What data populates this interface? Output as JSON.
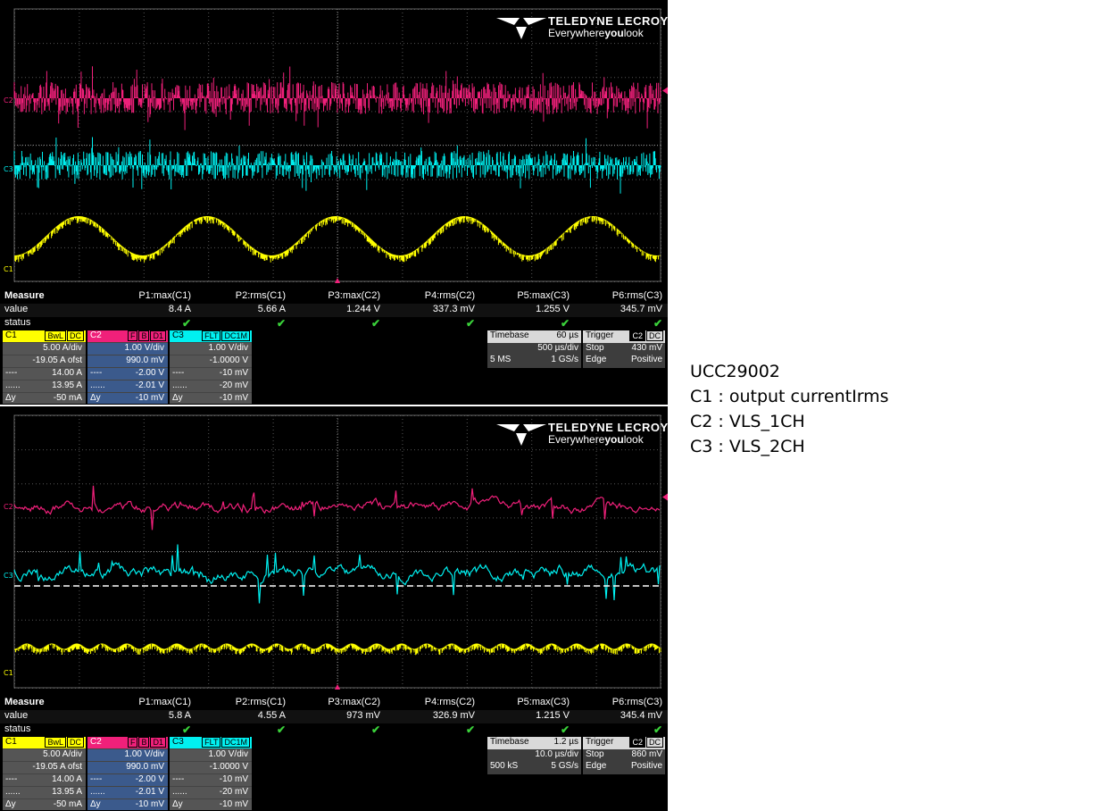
{
  "brand": {
    "name": "TELEDYNE LECROY",
    "tag_pre": "Everywhere",
    "tag_bold": "you",
    "tag_post": "look"
  },
  "colors": {
    "c1": "#ffff00",
    "c2": "#f0207a",
    "c3": "#00f0f0"
  },
  "side_notes": [
    "UCC29002",
    "C1 : output currentIrms",
    "C2 : VLS_1CH",
    "C3 : VLS_2CH"
  ],
  "scopes": [
    {
      "labels": {
        "c1": "C1",
        "c2": "C2",
        "c3": "C3"
      },
      "measure": {
        "title": "Measure",
        "value_label": "value",
        "status_label": "status",
        "params": [
          "P1:max(C1)",
          "P2:rms(C1)",
          "P3:max(C2)",
          "P4:rms(C2)",
          "P5:max(C3)",
          "P6:rms(C3)"
        ],
        "values": [
          "8.4 A",
          "5.66 A",
          "1.244 V",
          "337.3 mV",
          "1.255 V",
          "345.7 mV"
        ]
      },
      "c1": {
        "name": "C1",
        "tags": [
          "BwL",
          "DC"
        ],
        "rows": [
          [
            "",
            "5.00 A/div"
          ],
          [
            "",
            "-19.05 A ofst"
          ],
          [
            "----",
            "14.00 A"
          ],
          [
            "......",
            "13.95 A"
          ],
          [
            "Δy",
            "-50 mA"
          ]
        ]
      },
      "c2": {
        "name": "C2",
        "tags": [
          "F",
          "B",
          "D1"
        ],
        "rows": [
          [
            "",
            "1.00 V/div"
          ],
          [
            "",
            "990.0 mV"
          ],
          [
            "----",
            "-2.00 V"
          ],
          [
            "......",
            "-2.01 V"
          ],
          [
            "Δy",
            "-10 mV"
          ]
        ]
      },
      "c3": {
        "name": "C3",
        "tags": [
          "FLT",
          "DC1M"
        ],
        "rows": [
          [
            "",
            "1.00 V/div"
          ],
          [
            "",
            "-1.0000 V"
          ],
          [
            "----",
            "-10 mV"
          ],
          [
            "......",
            "-20 mV"
          ],
          [
            "Δy",
            "-10 mV"
          ]
        ]
      },
      "timebase": {
        "label": "Timebase",
        "value": "60 µs",
        "div": "500 µs/div",
        "samples": "5 MS",
        "rate": "1 GS/s"
      },
      "trigger": {
        "label": "Trigger",
        "tags": [
          "C2",
          "DC"
        ],
        "mode": "Stop",
        "level": "430 mV",
        "type": "Edge",
        "slope": "Positive"
      }
    },
    {
      "labels": {
        "c1": "C1",
        "c2": "C2",
        "c3": "C3"
      },
      "measure": {
        "title": "Measure",
        "value_label": "value",
        "status_label": "status",
        "params": [
          "P1:max(C1)",
          "P2:rms(C1)",
          "P3:max(C2)",
          "P4:rms(C2)",
          "P5:max(C3)",
          "P6:rms(C3)"
        ],
        "values": [
          "5.8 A",
          "4.55 A",
          "973 mV",
          "326.9 mV",
          "1.215 V",
          "345.4 mV"
        ]
      },
      "c1": {
        "name": "C1",
        "tags": [
          "BwL",
          "DC"
        ],
        "rows": [
          [
            "",
            "5.00 A/div"
          ],
          [
            "",
            "-19.05 A ofst"
          ],
          [
            "----",
            "14.00 A"
          ],
          [
            "......",
            "13.95 A"
          ],
          [
            "Δy",
            "-50 mA"
          ]
        ]
      },
      "c2": {
        "name": "C2",
        "tags": [
          "F",
          "B",
          "D1"
        ],
        "rows": [
          [
            "",
            "1.00 V/div"
          ],
          [
            "",
            "990.0 mV"
          ],
          [
            "----",
            "-2.00 V"
          ],
          [
            "......",
            "-2.01 V"
          ],
          [
            "Δy",
            "-10 mV"
          ]
        ]
      },
      "c3": {
        "name": "C3",
        "tags": [
          "FLT",
          "DC1M"
        ],
        "rows": [
          [
            "",
            "1.00 V/div"
          ],
          [
            "",
            "-1.0000 V"
          ],
          [
            "----",
            "-10 mV"
          ],
          [
            "......",
            "-20 mV"
          ],
          [
            "Δy",
            "-10 mV"
          ]
        ]
      },
      "timebase": {
        "label": "Timebase",
        "value": "1.2 µs",
        "div": "10.0 µs/div",
        "samples": "500 kS",
        "rate": "5 GS/s"
      },
      "trigger": {
        "label": "Trigger",
        "tags": [
          "C2",
          "DC"
        ],
        "mode": "Stop",
        "level": "860 mV",
        "type": "Edge",
        "slope": "Positive"
      }
    }
  ]
}
